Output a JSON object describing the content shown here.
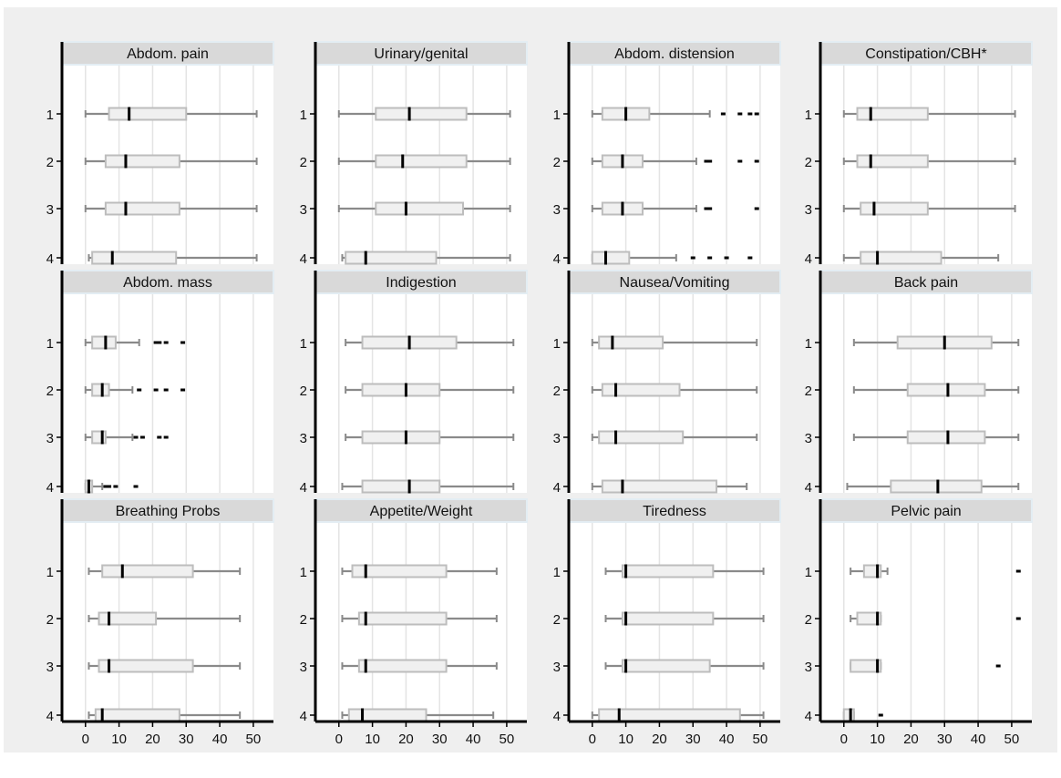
{
  "chart_data": {
    "type": "boxplot",
    "xlim": [
      -7,
      56
    ],
    "x_ticks": [
      0,
      10,
      20,
      30,
      40,
      50
    ],
    "x_tick_labels": [
      "0",
      "10",
      "20",
      "30",
      "40",
      "50"
    ],
    "categories": [
      "1",
      "2",
      "3",
      "4"
    ],
    "grid": "vertical",
    "colors": {
      "panel_bg": "#ffffff",
      "figure_bg": "#efefef",
      "strip_bg": "#d9d9d9",
      "box_fill": "#f0f0f0",
      "box_stroke": "#bdbdbd",
      "whisker": "#8a8a8a",
      "median": "#000000",
      "outlier": "#000000",
      "grid": "#e4e4e4"
    },
    "panels": [
      {
        "title": "Abdom. pain",
        "boxes": [
          {
            "category": "1",
            "min": 0,
            "q1": 7,
            "median": 13,
            "q3": 30,
            "max": 51,
            "outliers": []
          },
          {
            "category": "2",
            "min": 0,
            "q1": 6,
            "median": 12,
            "q3": 28,
            "max": 51,
            "outliers": []
          },
          {
            "category": "3",
            "min": 0,
            "q1": 6,
            "median": 12,
            "q3": 28,
            "max": 51,
            "outliers": []
          },
          {
            "category": "4",
            "min": 1,
            "q1": 2,
            "median": 8,
            "q3": 27,
            "max": 51,
            "outliers": []
          }
        ]
      },
      {
        "title": "Urinary/genital",
        "boxes": [
          {
            "category": "1",
            "min": 0,
            "q1": 11,
            "median": 21,
            "q3": 38,
            "max": 51,
            "outliers": []
          },
          {
            "category": "2",
            "min": 0,
            "q1": 11,
            "median": 19,
            "q3": 38,
            "max": 51,
            "outliers": []
          },
          {
            "category": "3",
            "min": 0,
            "q1": 11,
            "median": 20,
            "q3": 37,
            "max": 51,
            "outliers": []
          },
          {
            "category": "4",
            "min": 1,
            "q1": 2,
            "median": 8,
            "q3": 29,
            "max": 51,
            "outliers": []
          }
        ]
      },
      {
        "title": "Abdom. distension",
        "boxes": [
          {
            "category": "1",
            "min": 0,
            "q1": 3,
            "median": 10,
            "q3": 17,
            "max": 35,
            "outliers": [
              39,
              44,
              47,
              49
            ]
          },
          {
            "category": "2",
            "min": 0,
            "q1": 3,
            "median": 9,
            "q3": 15,
            "max": 31,
            "outliers": [
              34,
              35,
              44,
              49
            ]
          },
          {
            "category": "3",
            "min": 0,
            "q1": 3,
            "median": 9,
            "q3": 15,
            "max": 31,
            "outliers": [
              34,
              35,
              49
            ]
          },
          {
            "category": "4",
            "min": 0,
            "q1": 0,
            "median": 4,
            "q3": 11,
            "max": 25,
            "outliers": [
              30,
              35,
              40,
              47
            ]
          }
        ]
      },
      {
        "title": "Constipation/CBH*",
        "boxes": [
          {
            "category": "1",
            "min": 0,
            "q1": 4,
            "median": 8,
            "q3": 25,
            "max": 51,
            "outliers": []
          },
          {
            "category": "2",
            "min": 0,
            "q1": 4,
            "median": 8,
            "q3": 25,
            "max": 51,
            "outliers": []
          },
          {
            "category": "3",
            "min": 0,
            "q1": 5,
            "median": 9,
            "q3": 25,
            "max": 51,
            "outliers": []
          },
          {
            "category": "4",
            "min": 0,
            "q1": 5,
            "median": 10,
            "q3": 29,
            "max": 46,
            "outliers": []
          }
        ]
      },
      {
        "title": "Abdom. mass",
        "boxes": [
          {
            "category": "1",
            "min": 0,
            "q1": 2,
            "median": 6,
            "q3": 9,
            "max": 16,
            "outliers": [
              21,
              22,
              24,
              29
            ]
          },
          {
            "category": "2",
            "min": 0,
            "q1": 2,
            "median": 5,
            "q3": 7,
            "max": 14,
            "outliers": [
              16,
              21,
              24,
              29
            ]
          },
          {
            "category": "3",
            "min": 0,
            "q1": 2,
            "median": 5,
            "q3": 6,
            "max": 14,
            "outliers": [
              15,
              17,
              22,
              24
            ]
          },
          {
            "category": "4",
            "min": 0,
            "q1": 0,
            "median": 1,
            "q3": 2,
            "max": 5,
            "outliers": [
              6,
              7,
              9,
              15
            ]
          }
        ]
      },
      {
        "title": "Indigestion",
        "boxes": [
          {
            "category": "1",
            "min": 2,
            "q1": 7,
            "median": 21,
            "q3": 35,
            "max": 52,
            "outliers": []
          },
          {
            "category": "2",
            "min": 2,
            "q1": 7,
            "median": 20,
            "q3": 30,
            "max": 52,
            "outliers": []
          },
          {
            "category": "3",
            "min": 2,
            "q1": 7,
            "median": 20,
            "q3": 30,
            "max": 52,
            "outliers": []
          },
          {
            "category": "4",
            "min": 1,
            "q1": 7,
            "median": 21,
            "q3": 30,
            "max": 52,
            "outliers": []
          }
        ]
      },
      {
        "title": "Nausea/Vomiting",
        "boxes": [
          {
            "category": "1",
            "min": 0,
            "q1": 2,
            "median": 6,
            "q3": 21,
            "max": 49,
            "outliers": []
          },
          {
            "category": "2",
            "min": 0,
            "q1": 3,
            "median": 7,
            "q3": 26,
            "max": 49,
            "outliers": []
          },
          {
            "category": "3",
            "min": 0,
            "q1": 2,
            "median": 7,
            "q3": 27,
            "max": 49,
            "outliers": []
          },
          {
            "category": "4",
            "min": 0,
            "q1": 3,
            "median": 9,
            "q3": 37,
            "max": 46,
            "outliers": []
          }
        ]
      },
      {
        "title": "Back pain",
        "boxes": [
          {
            "category": "1",
            "min": 3,
            "q1": 16,
            "median": 30,
            "q3": 44,
            "max": 52,
            "outliers": []
          },
          {
            "category": "2",
            "min": 3,
            "q1": 19,
            "median": 31,
            "q3": 42,
            "max": 52,
            "outliers": []
          },
          {
            "category": "3",
            "min": 3,
            "q1": 19,
            "median": 31,
            "q3": 42,
            "max": 52,
            "outliers": []
          },
          {
            "category": "4",
            "min": 1,
            "q1": 14,
            "median": 28,
            "q3": 41,
            "max": 52,
            "outliers": []
          }
        ]
      },
      {
        "title": "Breathing Probs",
        "boxes": [
          {
            "category": "1",
            "min": 1,
            "q1": 5,
            "median": 11,
            "q3": 32,
            "max": 46,
            "outliers": []
          },
          {
            "category": "2",
            "min": 1,
            "q1": 4,
            "median": 7,
            "q3": 21,
            "max": 46,
            "outliers": []
          },
          {
            "category": "3",
            "min": 1,
            "q1": 4,
            "median": 7,
            "q3": 32,
            "max": 46,
            "outliers": []
          },
          {
            "category": "4",
            "min": 1,
            "q1": 3,
            "median": 5,
            "q3": 28,
            "max": 46,
            "outliers": []
          }
        ]
      },
      {
        "title": "Appetite/Weight",
        "boxes": [
          {
            "category": "1",
            "min": 1,
            "q1": 4,
            "median": 8,
            "q3": 32,
            "max": 47,
            "outliers": []
          },
          {
            "category": "2",
            "min": 1,
            "q1": 6,
            "median": 8,
            "q3": 32,
            "max": 47,
            "outliers": []
          },
          {
            "category": "3",
            "min": 1,
            "q1": 6,
            "median": 8,
            "q3": 32,
            "max": 47,
            "outliers": []
          },
          {
            "category": "4",
            "min": 1,
            "q1": 3,
            "median": 7,
            "q3": 26,
            "max": 46,
            "outliers": []
          }
        ]
      },
      {
        "title": "Tiredness",
        "boxes": [
          {
            "category": "1",
            "min": 4,
            "q1": 9,
            "median": 10,
            "q3": 36,
            "max": 51,
            "outliers": []
          },
          {
            "category": "2",
            "min": 4,
            "q1": 9,
            "median": 10,
            "q3": 36,
            "max": 51,
            "outliers": []
          },
          {
            "category": "3",
            "min": 4,
            "q1": 9,
            "median": 10,
            "q3": 35,
            "max": 51,
            "outliers": []
          },
          {
            "category": "4",
            "min": 0,
            "q1": 2,
            "median": 8,
            "q3": 44,
            "max": 51,
            "outliers": []
          }
        ]
      },
      {
        "title": "Pelvic pain",
        "boxes": [
          {
            "category": "1",
            "min": 2,
            "q1": 6,
            "median": 10,
            "q3": 11,
            "max": 13,
            "outliers": [
              52
            ]
          },
          {
            "category": "2",
            "min": 2,
            "q1": 4,
            "median": 10,
            "q3": 11,
            "max": 11,
            "outliers": [
              52
            ]
          },
          {
            "category": "3",
            "min": 2,
            "q1": 2,
            "median": 10,
            "q3": 11,
            "max": 11,
            "outliers": [
              46
            ]
          },
          {
            "category": "4",
            "min": 0,
            "q1": 0,
            "median": 2,
            "q3": 3,
            "max": 3,
            "outliers": [
              11
            ]
          }
        ]
      }
    ]
  }
}
